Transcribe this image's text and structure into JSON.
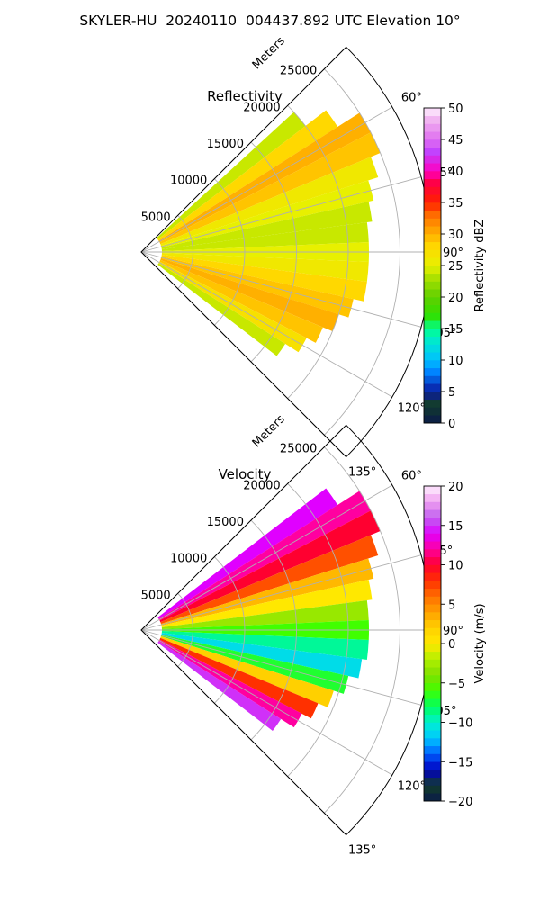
{
  "figure_title": "SKYLER-HU  20240110  004437.892 UTC Elevation 10°",
  "chart_data": [
    {
      "type": "heatmap",
      "subtype": "radar-ppi-sector",
      "title": "Reflectivity",
      "radial_axis_label": "Meters",
      "radial_ticks": [
        5000,
        10000,
        15000,
        20000,
        25000
      ],
      "radial_tick_labels": [
        "5000",
        "10000",
        "15000",
        "20000",
        "25000"
      ],
      "radial_range": [
        0,
        28000
      ],
      "azimuth_range_deg": [
        45,
        135
      ],
      "azimuth_ticks_deg": [
        60,
        75,
        90,
        105,
        120,
        135
      ],
      "azimuth_tick_labels": [
        "60°",
        "75°",
        "90°",
        "105°",
        "120°",
        "135°"
      ],
      "grid": true,
      "data_max_range_m": 25000,
      "colorbar": {
        "label": "Reflectivity dBZ",
        "min": 0,
        "max": 50,
        "ticks": [
          0,
          5,
          10,
          15,
          20,
          25,
          30,
          35,
          40,
          45,
          50
        ],
        "tick_labels": [
          "0",
          "5",
          "10",
          "15",
          "20",
          "25",
          "30",
          "35",
          "40",
          "45",
          "50"
        ],
        "colormap": "NWSRef",
        "stops": [
          [
            0,
            "#0a1a4a"
          ],
          [
            3,
            "#123d2a"
          ],
          [
            5,
            "#0a1aa0"
          ],
          [
            8,
            "#0080ff"
          ],
          [
            10,
            "#00c0ff"
          ],
          [
            13,
            "#00e8d0"
          ],
          [
            15,
            "#00ff90"
          ],
          [
            17,
            "#30e000"
          ],
          [
            20,
            "#60d000"
          ],
          [
            23,
            "#a8e000"
          ],
          [
            25,
            "#e8f000"
          ],
          [
            28,
            "#ffd800"
          ],
          [
            30,
            "#ffb000"
          ],
          [
            33,
            "#ff7000"
          ],
          [
            35,
            "#ff2000"
          ],
          [
            38,
            "#ff0040"
          ],
          [
            40,
            "#ff00c0"
          ],
          [
            43,
            "#c040ff"
          ],
          [
            45,
            "#e070f0"
          ],
          [
            48,
            "#f0b0f0"
          ],
          [
            50,
            "#fff0ff"
          ]
        ]
      },
      "cells_by_azimuth": [
        {
          "azimuth_deg": 50,
          "range_m": [
            2000,
            20000
          ],
          "dbz": 24
        },
        {
          "azimuth_deg": 55,
          "range_m": [
            2000,
            22500
          ],
          "dbz": 28
        },
        {
          "azimuth_deg": 60,
          "range_m": [
            2000,
            25000
          ],
          "dbz": 30
        },
        {
          "azimuth_deg": 65,
          "range_m": [
            2000,
            25000
          ],
          "dbz": 29
        },
        {
          "azimuth_deg": 70,
          "range_m": [
            2000,
            24000
          ],
          "dbz": 26
        },
        {
          "azimuth_deg": 75,
          "range_m": [
            2000,
            23000
          ],
          "dbz": 25
        },
        {
          "azimuth_deg": 80,
          "range_m": [
            2000,
            22500
          ],
          "dbz": 24
        },
        {
          "azimuth_deg": 85,
          "range_m": [
            2000,
            22000
          ],
          "dbz": 24
        },
        {
          "azimuth_deg": 90,
          "range_m": [
            2000,
            22000
          ],
          "dbz": 25
        },
        {
          "azimuth_deg": 95,
          "range_m": [
            2000,
            22000
          ],
          "dbz": 26
        },
        {
          "azimuth_deg": 100,
          "range_m": [
            2000,
            22000
          ],
          "dbz": 28
        },
        {
          "azimuth_deg": 105,
          "range_m": [
            2000,
            21000
          ],
          "dbz": 29
        },
        {
          "azimuth_deg": 110,
          "range_m": [
            2000,
            20000
          ],
          "dbz": 30
        },
        {
          "azimuth_deg": 115,
          "range_m": [
            2000,
            19000
          ],
          "dbz": 29
        },
        {
          "azimuth_deg": 120,
          "range_m": [
            2000,
            18000
          ],
          "dbz": 27
        },
        {
          "azimuth_deg": 125,
          "range_m": [
            2000,
            16500
          ],
          "dbz": 24
        }
      ]
    },
    {
      "type": "heatmap",
      "subtype": "radar-ppi-sector",
      "title": "Velocity",
      "radial_axis_label": "Meters",
      "radial_ticks": [
        5000,
        10000,
        15000,
        20000,
        25000
      ],
      "radial_tick_labels": [
        "5000",
        "10000",
        "15000",
        "20000",
        "25000"
      ],
      "radial_range": [
        0,
        28000
      ],
      "azimuth_range_deg": [
        45,
        135
      ],
      "azimuth_ticks_deg": [
        60,
        75,
        90,
        105,
        120,
        135
      ],
      "azimuth_tick_labels": [
        "60°",
        "75°",
        "90°",
        "105°",
        "120°",
        "135°"
      ],
      "grid": true,
      "data_max_range_m": 25000,
      "colorbar": {
        "label": "Velocity (m/s)",
        "min": -20,
        "max": 20,
        "ticks": [
          -20,
          -15,
          -10,
          -5,
          0,
          5,
          10,
          15,
          20
        ],
        "tick_labels": [
          "−20",
          "−15",
          "−10",
          "−5",
          "0",
          "5",
          "10",
          "15",
          "20"
        ],
        "colormap": "NWSVel",
        "stops": [
          [
            -20,
            "#0a1a4a"
          ],
          [
            -18,
            "#123d2a"
          ],
          [
            -16,
            "#0000c0"
          ],
          [
            -14,
            "#0060ff"
          ],
          [
            -12,
            "#00c8ff"
          ],
          [
            -10,
            "#00f0d0"
          ],
          [
            -8,
            "#00ff60"
          ],
          [
            -6,
            "#40ff00"
          ],
          [
            -4,
            "#80e000"
          ],
          [
            -2,
            "#b0f000"
          ],
          [
            0,
            "#ffe800"
          ],
          [
            2,
            "#ffd000"
          ],
          [
            4,
            "#ffa000"
          ],
          [
            6,
            "#ff7000"
          ],
          [
            8,
            "#ff3000"
          ],
          [
            10,
            "#ff0030"
          ],
          [
            12,
            "#ff00a0"
          ],
          [
            14,
            "#e000ff"
          ],
          [
            16,
            "#c060f0"
          ],
          [
            18,
            "#f0a0f0"
          ],
          [
            20,
            "#fff0ff"
          ]
        ]
      },
      "cells_by_azimuth": [
        {
          "azimuth_deg": 55,
          "range_m": [
            2000,
            22500
          ],
          "velocity_ms": 14
        },
        {
          "azimuth_deg": 60,
          "range_m": [
            2000,
            25000
          ],
          "velocity_ms": 12
        },
        {
          "azimuth_deg": 65,
          "range_m": [
            2000,
            25000
          ],
          "velocity_ms": 10
        },
        {
          "azimuth_deg": 70,
          "range_m": [
            2000,
            24000
          ],
          "velocity_ms": 7
        },
        {
          "azimuth_deg": 75,
          "range_m": [
            2000,
            23000
          ],
          "velocity_ms": 3
        },
        {
          "azimuth_deg": 80,
          "range_m": [
            2000,
            22500
          ],
          "velocity_ms": 0
        },
        {
          "azimuth_deg": 85,
          "range_m": [
            2000,
            22000
          ],
          "velocity_ms": -3
        },
        {
          "azimuth_deg": 90,
          "range_m": [
            2000,
            22000
          ],
          "velocity_ms": -6
        },
        {
          "azimuth_deg": 95,
          "range_m": [
            2000,
            22000
          ],
          "velocity_ms": -9
        },
        {
          "azimuth_deg": 100,
          "range_m": [
            2000,
            21500
          ],
          "velocity_ms": -11
        },
        {
          "azimuth_deg": 105,
          "range_m": [
            2000,
            20500
          ],
          "velocity_ms": -7
        },
        {
          "azimuth_deg": 110,
          "range_m": [
            2000,
            19500
          ],
          "velocity_ms": 2
        },
        {
          "azimuth_deg": 115,
          "range_m": [
            2000,
            18500
          ],
          "velocity_ms": 8
        },
        {
          "azimuth_deg": 120,
          "range_m": [
            2000,
            17500
          ],
          "velocity_ms": 12
        },
        {
          "azimuth_deg": 125,
          "range_m": [
            2000,
            16000
          ],
          "velocity_ms": 15
        }
      ]
    }
  ]
}
